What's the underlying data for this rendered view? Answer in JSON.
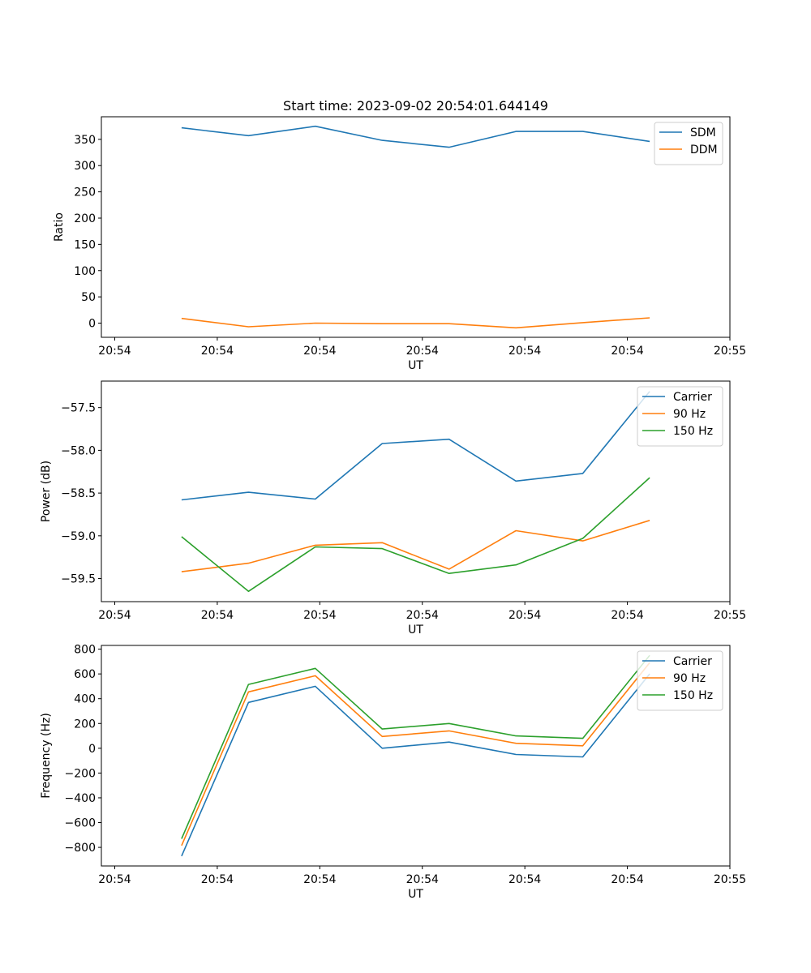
{
  "chart_data": [
    {
      "type": "line",
      "title": "Start time: 2023-09-02 20:54:01.644149",
      "xlabel": "UT",
      "ylabel": "Ratio",
      "x": [
        0.75,
        1.5,
        2.25,
        3.0,
        3.75,
        4.5,
        5.25,
        6.0
      ],
      "xlim": [
        -0.15,
        6.9
      ],
      "xticks": [
        0,
        1.15,
        2.3,
        3.45,
        4.6,
        5.75,
        6.9
      ],
      "xtick_labels": [
        "20:54",
        "20:54",
        "20:54",
        "20:54",
        "20:54",
        "20:54",
        "20:55"
      ],
      "ylim": [
        -27,
        393
      ],
      "yticks": [
        0,
        50,
        100,
        150,
        200,
        250,
        300,
        350
      ],
      "ytick_labels": [
        "0",
        "50",
        "100",
        "150",
        "200",
        "250",
        "300",
        "350"
      ],
      "legend_loc": "top-right",
      "series": [
        {
          "name": "SDM",
          "color": "#1f77b4",
          "values": [
            372,
            357,
            375,
            348,
            335,
            365,
            365,
            346
          ]
        },
        {
          "name": "DDM",
          "color": "#ff7f0e",
          "values": [
            9,
            -7,
            0,
            -1,
            -1,
            -9,
            1,
            10
          ]
        }
      ]
    },
    {
      "type": "line",
      "title": "",
      "xlabel": "UT",
      "ylabel": "Power (dB)",
      "x": [
        0.75,
        1.5,
        2.25,
        3.0,
        3.75,
        4.5,
        5.25,
        6.0
      ],
      "xlim": [
        -0.15,
        6.9
      ],
      "xticks": [
        0,
        1.15,
        2.3,
        3.45,
        4.6,
        5.75,
        6.9
      ],
      "xtick_labels": [
        "20:54",
        "20:54",
        "20:54",
        "20:54",
        "20:54",
        "20:54",
        "20:55"
      ],
      "ylim": [
        -59.77,
        -57.19
      ],
      "yticks": [
        -59.5,
        -59.0,
        -58.5,
        -58.0,
        -57.5
      ],
      "ytick_labels": [
        "−59.5",
        "−59.0",
        "−58.5",
        "−58.0",
        "−57.5"
      ],
      "legend_loc": "top-right",
      "series": [
        {
          "name": "Carrier",
          "color": "#1f77b4",
          "values": [
            -58.58,
            -58.49,
            -58.57,
            -57.92,
            -57.87,
            -58.36,
            -58.27,
            -57.31
          ]
        },
        {
          "name": "90 Hz",
          "color": "#ff7f0e",
          "values": [
            -59.42,
            -59.32,
            -59.11,
            -59.08,
            -59.39,
            -58.94,
            -59.06,
            -58.82
          ]
        },
        {
          "name": "150 Hz",
          "color": "#2ca02c",
          "values": [
            -59.01,
            -59.65,
            -59.13,
            -59.15,
            -59.44,
            -59.34,
            -59.03,
            -58.32
          ]
        }
      ]
    },
    {
      "type": "line",
      "title": "",
      "xlabel": "UT",
      "ylabel": "Frequency (Hz)",
      "x": [
        0.75,
        1.5,
        2.25,
        3.0,
        3.75,
        4.5,
        5.25,
        6.0
      ],
      "xlim": [
        -0.15,
        6.9
      ],
      "xticks": [
        0,
        1.15,
        2.3,
        3.45,
        4.6,
        5.75,
        6.9
      ],
      "xtick_labels": [
        "20:54",
        "20:54",
        "20:54",
        "20:54",
        "20:54",
        "20:54",
        "20:55"
      ],
      "ylim": [
        -950,
        830
      ],
      "yticks": [
        -800,
        -600,
        -400,
        -200,
        0,
        200,
        400,
        600,
        800
      ],
      "ytick_labels": [
        "−800",
        "−600",
        "−400",
        "−200",
        "0",
        "200",
        "400",
        "600",
        "800"
      ],
      "legend_loc": "top-right",
      "series": [
        {
          "name": "Carrier",
          "color": "#1f77b4",
          "values": [
            -870,
            370,
            500,
            0,
            50,
            -50,
            -70,
            600
          ]
        },
        {
          "name": "90 Hz",
          "color": "#ff7f0e",
          "values": [
            -785,
            455,
            585,
            95,
            140,
            40,
            20,
            690
          ]
        },
        {
          "name": "150 Hz",
          "color": "#2ca02c",
          "values": [
            -730,
            515,
            645,
            155,
            200,
            100,
            80,
            750
          ]
        }
      ]
    }
  ]
}
